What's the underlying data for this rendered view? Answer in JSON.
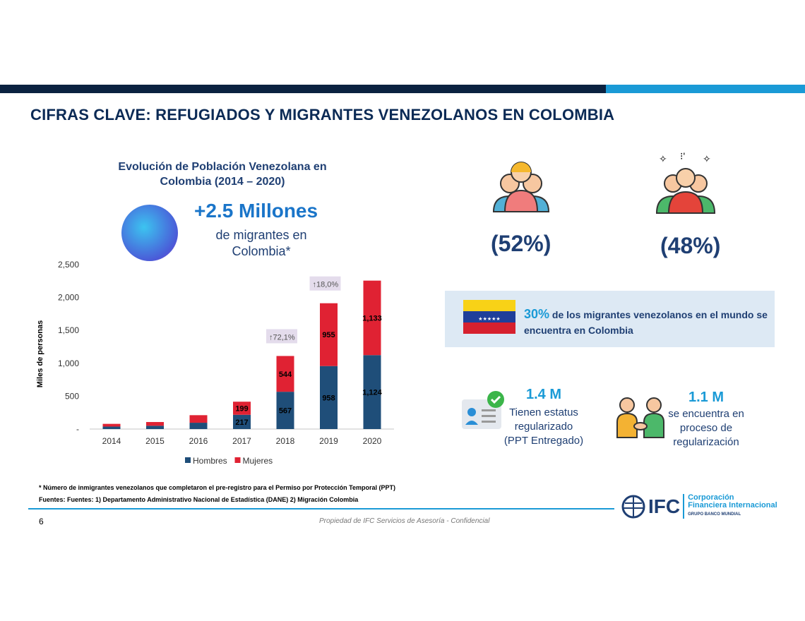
{
  "header": {
    "title": "CIFRAS CLAVE: REFUGIADOS Y MIGRANTES VENEZOLANOS EN COLOMBIA",
    "colors": {
      "dark": "#0b2240",
      "light": "#1a9ad6"
    }
  },
  "highlight": {
    "value": "+2.5 Millones",
    "subtitle": "de migrantes en Colombia*"
  },
  "gender": {
    "women_pct": "(52%)",
    "men_pct": "(48%)"
  },
  "venezuela": {
    "pct": "30%",
    "text": "de los migrantes venezolanos en el mundo se encuentra en Colombia"
  },
  "status": [
    {
      "value": "1.4 M",
      "text": "Tienen estatus regularizado (PPT Entregado)"
    },
    {
      "value": "1.1 M",
      "text": "se encuentra en proceso de regularización"
    }
  ],
  "footer": {
    "note": "* Número de inmigrantes venezolanos que completaron el pre-registro para el Permiso por Protección Temporal (PPT)",
    "sources": "Fuentes: Fuentes: 1) Departamento Administrativo Nacional de Estadística (DANE) 2) Migración Colombia",
    "page": "6",
    "confidential": "Propiedad de IFC Servicios de Asesoría - Confidencial",
    "logo": {
      "mark": "IFC",
      "line1": "Corporación",
      "line2": "Financiera Internacional",
      "line3": "GRUPO BANCO MUNDIAL"
    }
  },
  "chart_data": {
    "type": "bar",
    "stacked": true,
    "title": "Evolución de Población Venezolana en Colombia (2014 – 2020)",
    "ylabel": "Miles de personas",
    "xlabel": "",
    "ylim": [
      0,
      2500
    ],
    "yticks": [
      "-",
      "500",
      "1,000",
      "1,500",
      "2,000",
      "2,500"
    ],
    "categories": [
      "2014",
      "2015",
      "2016",
      "2017",
      "2018",
      "2019",
      "2020"
    ],
    "series": [
      {
        "name": "Hombres",
        "color": "#1f4e79",
        "values": [
          38,
          50,
          96,
          217,
          567,
          958,
          1124
        ],
        "labels": [
          "",
          "",
          "",
          "217",
          "567",
          "958",
          "1,124"
        ]
      },
      {
        "name": "Mujeres",
        "color": "#e02233",
        "values": [
          41,
          57,
          115,
          199,
          544,
          955,
          1133
        ],
        "labels": [
          "",
          "",
          "",
          "199",
          "544",
          "955",
          "1,133"
        ]
      }
    ],
    "annotations": [
      {
        "category": "2019",
        "text": "18,0%"
      },
      {
        "category": "2018",
        "text": "72,1%"
      }
    ],
    "legend": "bottom"
  }
}
